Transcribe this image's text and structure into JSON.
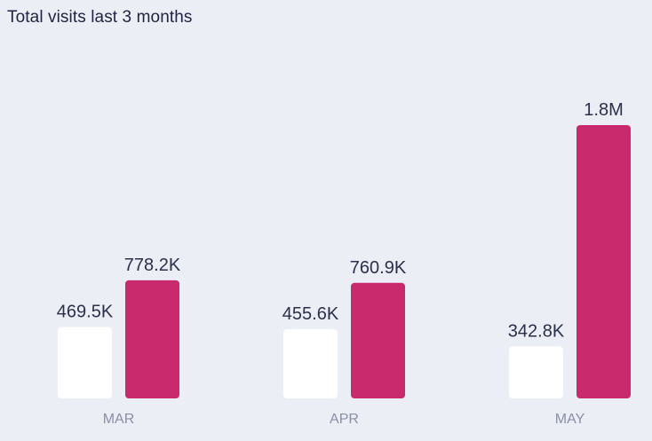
{
  "title": "Total visits last 3 months",
  "chart_data": {
    "type": "bar",
    "categories": [
      "MAR",
      "APR",
      "MAY"
    ],
    "series": [
      {
        "values": [
          469500,
          455600,
          342800
        ],
        "labels": [
          "469.5K",
          "455.6K",
          "342.8K"
        ],
        "color": "#ffffff"
      },
      {
        "values": [
          778200,
          760900,
          1800000
        ],
        "labels": [
          "778.2K",
          "760.9K",
          "1.8M"
        ],
        "color": "#c92a6e"
      }
    ],
    "ylim": [
      0,
      1800000
    ],
    "grid": false
  },
  "colors": {
    "background": "#eceef6",
    "accent": "#c92a6e",
    "secondary_bar": "#ffffff",
    "text": "#1f2340",
    "muted_text": "#8a8fa6"
  }
}
